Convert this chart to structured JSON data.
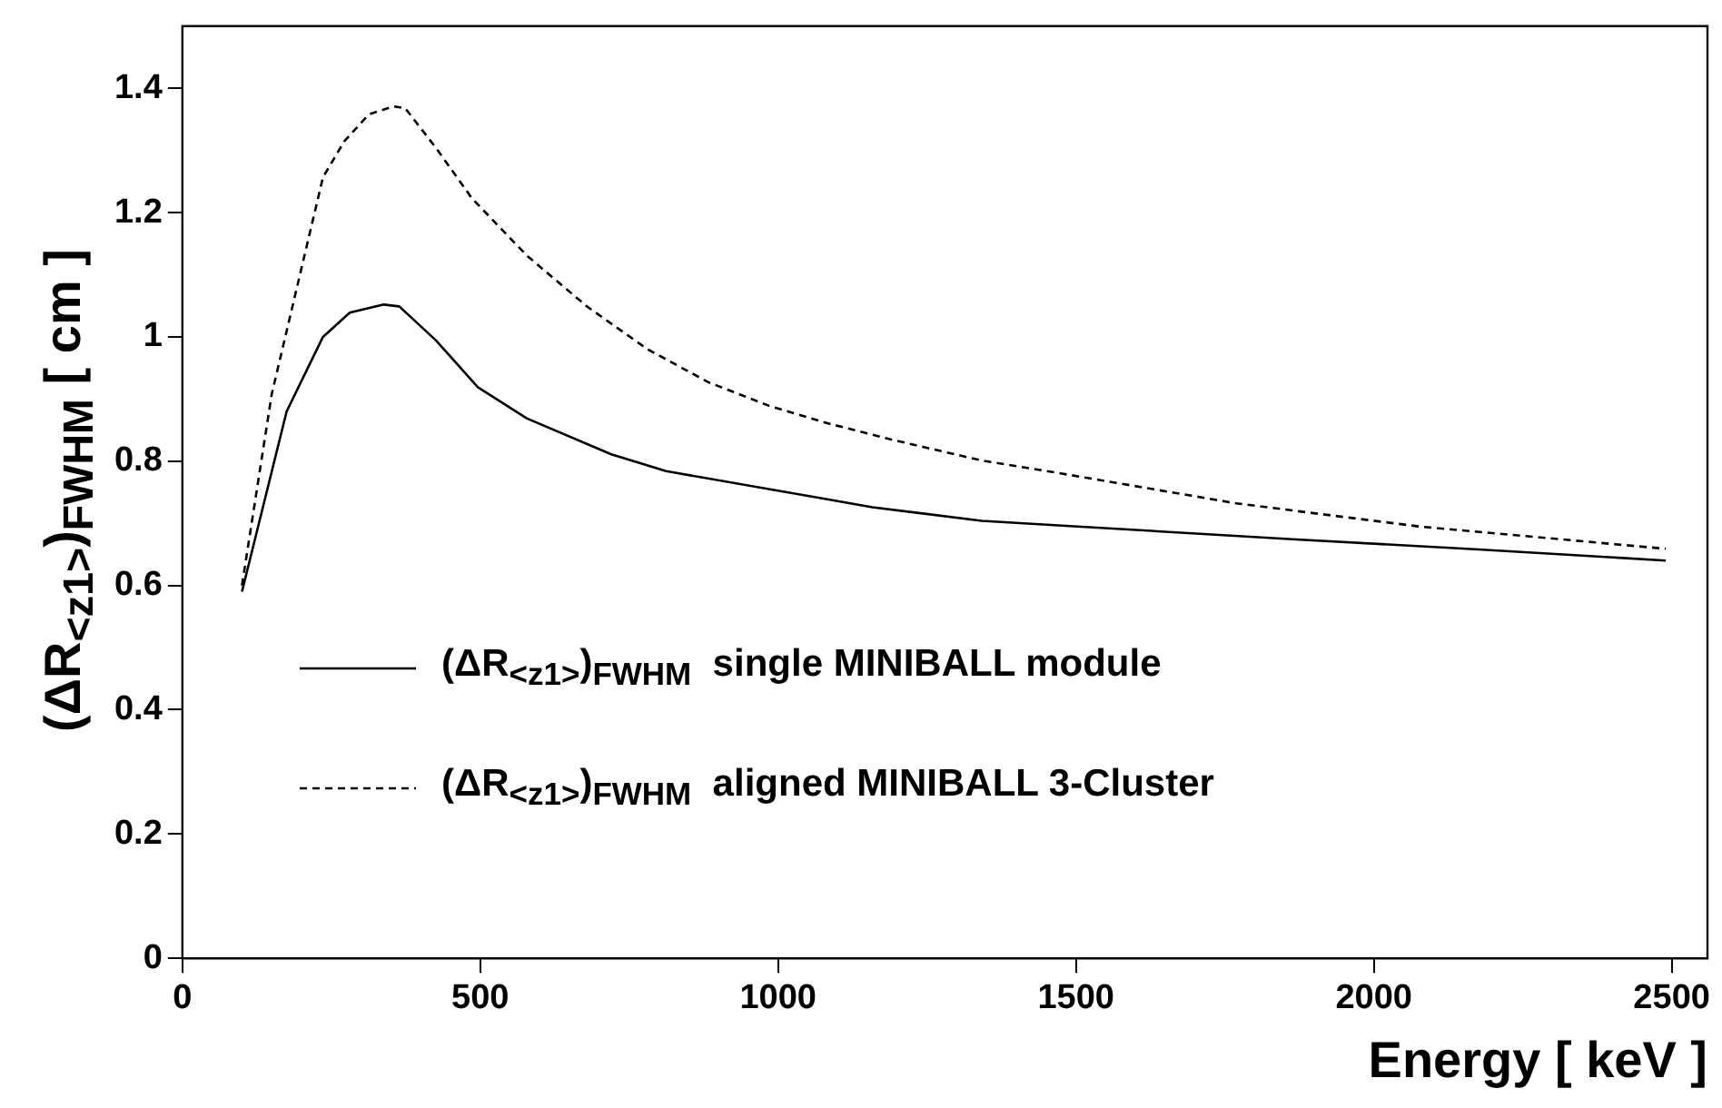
{
  "chart_data": {
    "type": "line",
    "xlabel": "Energy [ keV ]",
    "ylabel": "(ΔR$_{<z1>}$)$_{FWHM}$ [ cm ]",
    "xlim": [
      0,
      2560
    ],
    "xticks": [
      0,
      500,
      1000,
      1500,
      2000,
      2500
    ],
    "ylim": [
      0,
      1.5
    ],
    "yticks": [
      0,
      0.2,
      0.4,
      0.6,
      0.8,
      1,
      1.2,
      1.4
    ],
    "grid": false,
    "legend": "bottom left",
    "marker": "none",
    "series": [
      {
        "name": "(ΔR$_{<z1>}$)$_{FWHM}$  single MINIBALL module",
        "color": "#000000",
        "line_style": "solid",
        "x": [
          100,
          175,
          236,
          281,
          338,
          364,
          425,
          496,
          578,
          720,
          812,
          1087,
          1158,
          1342,
          1464,
          1870,
          2176,
          2490
        ],
        "values": [
          0.59,
          0.88,
          1.0,
          1.039,
          1.052,
          1.049,
          0.995,
          0.919,
          0.869,
          0.811,
          0.784,
          0.738,
          0.726,
          0.704,
          0.697,
          0.674,
          0.658,
          0.64
        ]
      },
      {
        "name": "(ΔR$_{<z1>}$)$_{FWHM}$  aligned MINIBALL 3-Cluster",
        "color": "#000000",
        "line_style": "dashed",
        "x": [
          100,
          150,
          236,
          272,
          313,
          354,
          374,
          425,
          486,
          578,
          679,
          781,
          883,
          985,
          1087,
          1189,
          1342,
          1464,
          1770,
          2075,
          2490
        ],
        "values": [
          0.6,
          0.908,
          1.257,
          1.315,
          1.358,
          1.371,
          1.368,
          1.305,
          1.223,
          1.131,
          1.049,
          0.98,
          0.927,
          0.889,
          0.86,
          0.835,
          0.801,
          0.782,
          0.732,
          0.695,
          0.659
        ]
      }
    ]
  }
}
